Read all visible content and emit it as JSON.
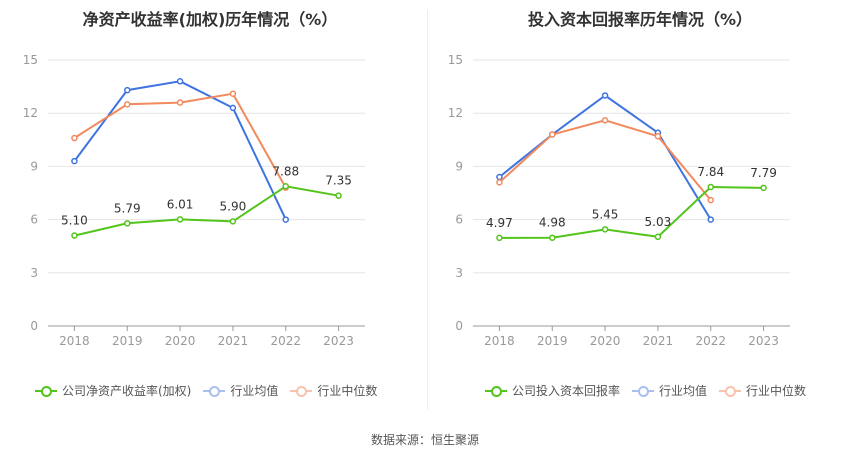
{
  "charts": [
    {
      "title": "净资产收益率(加权)历年情况（%）",
      "legend": [
        "公司净资产收益率(加权)",
        "行业均值",
        "行业中位数"
      ]
    },
    {
      "title": "投入资本回报率历年情况（%）",
      "legend": [
        "公司投入资本回报率",
        "行业均值",
        "行业中位数"
      ]
    }
  ],
  "source": "数据来源：恒生聚源",
  "colors": {
    "company": "#52c41a",
    "mean": "#3f74e0",
    "median": "#f28a5e",
    "grid": "#e6e6e6",
    "axis": "#999999"
  },
  "chart_data": [
    {
      "type": "line",
      "title": "净资产收益率(加权)历年情况（%）",
      "categories": [
        "2018",
        "2019",
        "2020",
        "2021",
        "2022",
        "2023"
      ],
      "ylim": [
        0,
        15
      ],
      "yticks": [
        0,
        3,
        6,
        9,
        12,
        15
      ],
      "grid": true,
      "legend_position": "bottom",
      "series": [
        {
          "name": "公司净资产收益率(加权)",
          "values": [
            5.1,
            5.79,
            6.01,
            5.9,
            7.88,
            7.35
          ],
          "labels": [
            "5.10",
            "5.79",
            "6.01",
            "5.90",
            "7.88",
            "7.35"
          ]
        },
        {
          "name": "行业均值",
          "values": [
            9.3,
            13.3,
            13.8,
            12.3,
            6.0,
            null
          ]
        },
        {
          "name": "行业中位数",
          "values": [
            10.6,
            12.5,
            12.6,
            13.1,
            7.8,
            null
          ]
        }
      ]
    },
    {
      "type": "line",
      "title": "投入资本回报率历年情况（%）",
      "categories": [
        "2018",
        "2019",
        "2020",
        "2021",
        "2022",
        "2023"
      ],
      "ylim": [
        0,
        15
      ],
      "yticks": [
        0,
        3,
        6,
        9,
        12,
        15
      ],
      "grid": true,
      "legend_position": "bottom",
      "series": [
        {
          "name": "公司投入资本回报率",
          "values": [
            4.97,
            4.98,
            5.45,
            5.03,
            7.84,
            7.79
          ],
          "labels": [
            "4.97",
            "4.98",
            "5.45",
            "5.03",
            "7.84",
            "7.79"
          ]
        },
        {
          "name": "行业均值",
          "values": [
            8.4,
            10.8,
            13.0,
            10.9,
            6.0,
            null
          ]
        },
        {
          "name": "行业中位数",
          "values": [
            8.1,
            10.8,
            11.6,
            10.7,
            7.1,
            null
          ]
        }
      ]
    }
  ]
}
